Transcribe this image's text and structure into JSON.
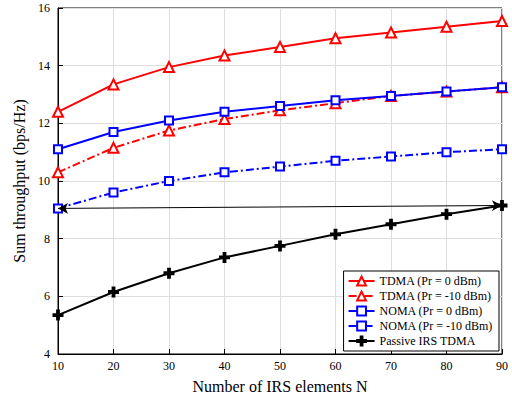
{
  "chart_data": {
    "type": "line",
    "x_label": "Number of IRS elements N",
    "y_label": "Sum throughput (bps/Hz)",
    "x": [
      10,
      20,
      30,
      40,
      50,
      60,
      70,
      80,
      90
    ],
    "xlim": [
      10,
      90
    ],
    "xticks": [
      10,
      20,
      30,
      40,
      50,
      60,
      70,
      80,
      90
    ],
    "ylim": [
      4,
      16
    ],
    "yticks": [
      4,
      6,
      8,
      10,
      12,
      14,
      16
    ],
    "grid": true,
    "legend": "lower right",
    "series": [
      {
        "name": "TDMA (Pr = 0 dBm)",
        "color": "#ff0000",
        "marker": "triangle",
        "line_style": "solid",
        "values": [
          12.4,
          13.35,
          13.95,
          14.35,
          14.65,
          14.95,
          15.15,
          15.35,
          15.55
        ]
      },
      {
        "name": "TDMA (Pr = -10 dBm)",
        "color": "#ff0000",
        "marker": "triangle",
        "line_style": "dashdot",
        "values": [
          10.3,
          11.15,
          11.75,
          12.15,
          12.45,
          12.7,
          12.95,
          13.1,
          13.25
        ]
      },
      {
        "name": "NOMA (Pr = 0 dBm)",
        "color": "#0000ff",
        "marker": "square",
        "line_style": "solid",
        "values": [
          11.1,
          11.7,
          12.1,
          12.4,
          12.6,
          12.8,
          12.95,
          13.1,
          13.25
        ]
      },
      {
        "name": "NOMA (Pr = -10 dBm)",
        "color": "#0000ff",
        "marker": "square",
        "line_style": "dashdot",
        "values": [
          9.05,
          9.6,
          10.0,
          10.3,
          10.5,
          10.7,
          10.85,
          11.0,
          11.1
        ]
      },
      {
        "name": "Passive IRS TDMA",
        "color": "#000000",
        "marker": "plus",
        "line_style": "solid",
        "values": [
          5.35,
          6.15,
          6.8,
          7.35,
          7.75,
          8.15,
          8.5,
          8.85,
          9.15
        ]
      }
    ]
  }
}
